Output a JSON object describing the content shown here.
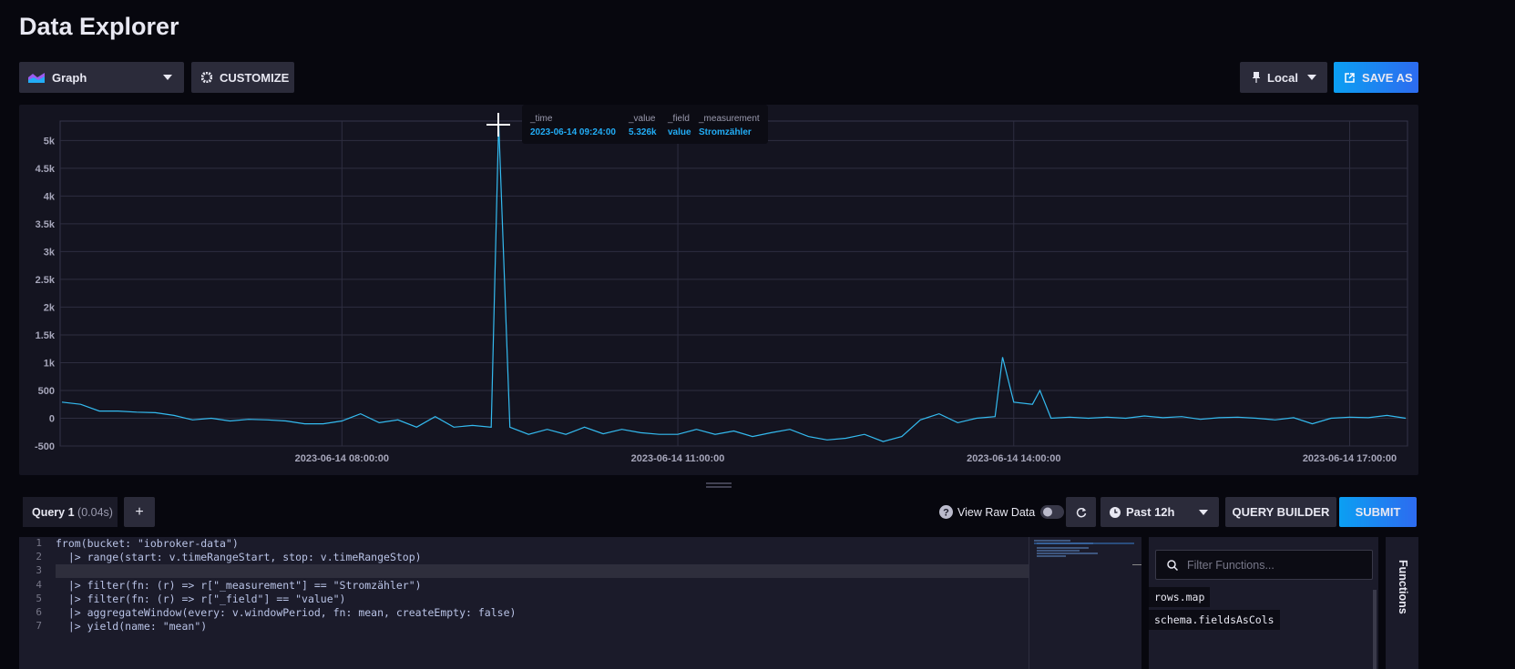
{
  "header": {
    "title": "Data Explorer"
  },
  "toolbar": {
    "graph": "Graph",
    "customize": "CUSTOMIZE",
    "local": "Local",
    "save_as": "SAVE AS"
  },
  "chart_data": {
    "type": "line",
    "color": "#34bbf0",
    "grid": true,
    "x": [
      "2023-06-14 05:30:00",
      "2023-06-14 05:40:00",
      "2023-06-14 05:50:00",
      "2023-06-14 06:00:00",
      "2023-06-14 06:10:00",
      "2023-06-14 06:20:00",
      "2023-06-14 06:30:00",
      "2023-06-14 06:40:00",
      "2023-06-14 06:50:00",
      "2023-06-14 07:00:00",
      "2023-06-14 07:10:00",
      "2023-06-14 07:20:00",
      "2023-06-14 07:30:00",
      "2023-06-14 07:40:00",
      "2023-06-14 07:50:00",
      "2023-06-14 08:00:00",
      "2023-06-14 08:10:00",
      "2023-06-14 08:20:00",
      "2023-06-14 08:30:00",
      "2023-06-14 08:40:00",
      "2023-06-14 08:50:00",
      "2023-06-14 09:00:00",
      "2023-06-14 09:10:00",
      "2023-06-14 09:20:00",
      "2023-06-14 09:24:00",
      "2023-06-14 09:30:00",
      "2023-06-14 09:40:00",
      "2023-06-14 09:50:00",
      "2023-06-14 10:00:00",
      "2023-06-14 10:10:00",
      "2023-06-14 10:20:00",
      "2023-06-14 10:30:00",
      "2023-06-14 10:40:00",
      "2023-06-14 10:50:00",
      "2023-06-14 11:00:00",
      "2023-06-14 11:10:00",
      "2023-06-14 11:20:00",
      "2023-06-14 11:30:00",
      "2023-06-14 11:40:00",
      "2023-06-14 11:50:00",
      "2023-06-14 12:00:00",
      "2023-06-14 12:10:00",
      "2023-06-14 12:20:00",
      "2023-06-14 12:30:00",
      "2023-06-14 12:40:00",
      "2023-06-14 12:50:00",
      "2023-06-14 13:00:00",
      "2023-06-14 13:10:00",
      "2023-06-14 13:20:00",
      "2023-06-14 13:30:00",
      "2023-06-14 13:40:00",
      "2023-06-14 13:50:00",
      "2023-06-14 13:54:00",
      "2023-06-14 14:00:00",
      "2023-06-14 14:10:00",
      "2023-06-14 14:14:00",
      "2023-06-14 14:20:00",
      "2023-06-14 14:30:00",
      "2023-06-14 14:40:00",
      "2023-06-14 14:50:00",
      "2023-06-14 15:00:00",
      "2023-06-14 15:10:00",
      "2023-06-14 15:20:00",
      "2023-06-14 15:30:00",
      "2023-06-14 15:40:00",
      "2023-06-14 15:50:00",
      "2023-06-14 16:00:00",
      "2023-06-14 16:10:00",
      "2023-06-14 16:20:00",
      "2023-06-14 16:30:00",
      "2023-06-14 16:40:00",
      "2023-06-14 16:50:00",
      "2023-06-14 17:00:00",
      "2023-06-14 17:10:00",
      "2023-06-14 17:20:00",
      "2023-06-14 17:30:00"
    ],
    "values": [
      290,
      250,
      130,
      130,
      110,
      100,
      50,
      -30,
      0,
      -50,
      -20,
      -30,
      -50,
      -100,
      -100,
      -50,
      80,
      -80,
      -30,
      -160,
      30,
      -160,
      -130,
      -160,
      5326,
      -160,
      -290,
      -200,
      -290,
      -160,
      -280,
      -200,
      -260,
      -290,
      -290,
      -200,
      -290,
      -230,
      -330,
      -260,
      -200,
      -330,
      -390,
      -360,
      -290,
      -420,
      -330,
      -30,
      80,
      -80,
      0,
      30,
      1100,
      290,
      250,
      500,
      0,
      20,
      0,
      20,
      0,
      40,
      10,
      30,
      -20,
      10,
      20,
      0,
      -30,
      10,
      -100,
      0,
      20,
      10,
      50,
      0
    ],
    "xlim": [
      "2023-06-14 05:29:00",
      "2023-06-14 17:31:00"
    ],
    "xticks": [
      "2023-06-14 08:00:00",
      "2023-06-14 11:00:00",
      "2023-06-14 14:00:00",
      "2023-06-14 17:00:00"
    ],
    "ylim": [
      -500,
      5350
    ],
    "yticks": [
      -500,
      0,
      500,
      {
        "value": 1000,
        "label": "1k"
      },
      {
        "value": 1500,
        "label": "1.5k"
      },
      {
        "value": 2000,
        "label": "2k"
      },
      {
        "value": 2500,
        "label": "2.5k"
      },
      {
        "value": 3000,
        "label": "3k"
      },
      {
        "value": 3500,
        "label": "3.5k"
      },
      {
        "value": 4000,
        "label": "4k"
      },
      {
        "value": 4500,
        "label": "4.5k"
      },
      {
        "value": 5000,
        "label": "5k"
      }
    ]
  },
  "tooltip": {
    "headers": [
      "_time",
      "_value",
      "_field",
      "_measurement"
    ],
    "values": [
      "2023-06-14 09:24:00",
      "5.326k",
      "value",
      "Stromzähler"
    ]
  },
  "query_bar": {
    "tab": "Query 1",
    "timing": "(0.04s)",
    "add": "+",
    "raw_data": "View Raw Data",
    "range": "Past 12h",
    "query_builder": "QUERY BUILDER",
    "submit": "SUBMIT"
  },
  "editor": {
    "lines": [
      {
        "number": 1,
        "text": "from(bucket: \"iobroker-data\")"
      },
      {
        "number": 2,
        "text": "  |> range(start: v.timeRangeStart, stop: v.timeRangeStop)"
      },
      {
        "number": 3
      },
      {
        "number": 4,
        "text": "  |> filter(fn: (r) => r[\"_measurement\"] == \"Stromzähler\")"
      },
      {
        "number": 5,
        "text": "  |> filter(fn: (r) => r[\"_field\"] == \"value\")"
      },
      {
        "number": 6,
        "text": "  |> aggregateWindow(every: v.windowPeriod, fn: mean, createEmpty: false)"
      },
      {
        "number": 7,
        "text": "  |> yield(name: \"mean\")"
      }
    ]
  },
  "functions": {
    "placeholder": "Filter Functions...",
    "items": [
      "rows.map",
      "schema.fieldsAsCols"
    ],
    "tab": "Functions"
  }
}
